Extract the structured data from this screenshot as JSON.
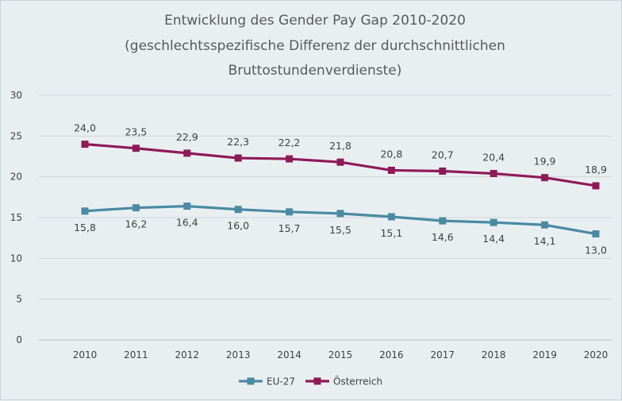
{
  "chart_data": {
    "type": "line",
    "title_lines": [
      "Entwicklung des Gender Pay Gap 2010-2020",
      "(geschlechtsspezifische  Differenz der durchschnittlichen",
      "Bruttostundenverdienste)"
    ],
    "categories": [
      "2010",
      "2011",
      "2012",
      "2013",
      "2014",
      "2015",
      "2016",
      "2017",
      "2018",
      "2019",
      "2020"
    ],
    "series": [
      {
        "name": "EU-27",
        "color": "#4a8aa2",
        "values": [
          15.8,
          16.2,
          16.4,
          16.0,
          15.7,
          15.5,
          15.1,
          14.6,
          14.4,
          14.1,
          13.0
        ],
        "labels": [
          "15,8",
          "16,2",
          "16,4",
          "16,0",
          "15,7",
          "15,5",
          "15,1",
          "14,6",
          "14,4",
          "14,1",
          "13,0"
        ],
        "label_position": "below"
      },
      {
        "name": "Österreich",
        "color": "#8e1a58",
        "values": [
          24.0,
          23.5,
          22.9,
          22.3,
          22.2,
          21.8,
          20.8,
          20.7,
          20.4,
          19.9,
          18.9
        ],
        "labels": [
          "24,0",
          "23,5",
          "22,9",
          "22,3",
          "22,2",
          "21,8",
          "20,8",
          "20,7",
          "20,4",
          "19,9",
          "18,9"
        ],
        "label_position": "above"
      }
    ],
    "ylim": [
      0,
      30
    ],
    "yticks": [
      0,
      5,
      10,
      15,
      20,
      25,
      30
    ],
    "ytick_labels": [
      "0",
      "5",
      "10",
      "15",
      "20",
      "25",
      "30"
    ],
    "grid": true,
    "legend": "bottom-center"
  }
}
